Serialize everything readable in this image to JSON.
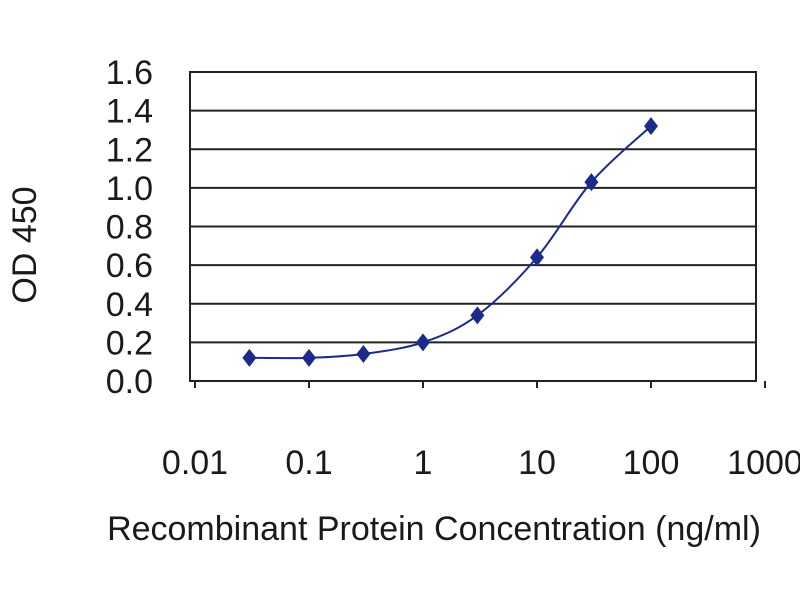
{
  "chart_data": {
    "type": "scatter",
    "xscale": "log",
    "xlabel": "Recombinant Protein Concentration (ng/ml)",
    "ylabel": "OD 450",
    "xlim": [
      0.01,
      1000
    ],
    "ylim": [
      0.0,
      1.6
    ],
    "xticks": [
      0.01,
      0.1,
      1,
      10,
      100,
      1000
    ],
    "xtick_labels": [
      "0.01",
      "0.1",
      "1",
      "10",
      "100",
      "1000"
    ],
    "yticks": [
      0.0,
      0.2,
      0.4,
      0.6,
      0.8,
      1.0,
      1.2,
      1.4,
      1.6
    ],
    "ytick_labels": [
      "0.0",
      "0.2",
      "0.4",
      "0.6",
      "0.8",
      "1.0",
      "1.2",
      "1.4",
      "1.6"
    ],
    "grid": "horizontal",
    "series": [
      {
        "x": [
          0.03,
          0.1,
          0.3,
          1,
          3,
          10,
          30,
          100
        ],
        "y": [
          0.12,
          0.12,
          0.14,
          0.2,
          0.34,
          0.64,
          1.03,
          1.32
        ],
        "marker": "diamond",
        "color": "#1c2a8c",
        "connected": true
      }
    ]
  }
}
